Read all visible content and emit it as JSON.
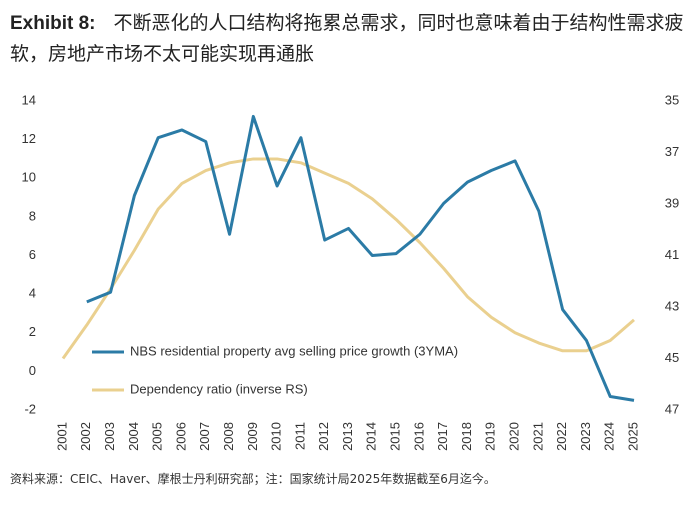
{
  "chart_data": {
    "type": "line",
    "title_label": "Exhibit 8:",
    "title": "不断恶化的人口结构将拖累总需求，同时也意味着由于结构性需求疲软，房地产市场不太可能实现再通胀",
    "source": "资料来源：CEIC、Haver、摩根士丹利研究部；注：国家统计局2025年数据截至6月迄今。",
    "categories": [
      "2001",
      "2002",
      "2003",
      "2004",
      "2005",
      "2006",
      "2007",
      "2008",
      "2009",
      "2010",
      "2011",
      "2012",
      "2013",
      "2014",
      "2015",
      "2016",
      "2017",
      "2018",
      "2019",
      "2020",
      "2021",
      "2022",
      "2023",
      "2024",
      "2025"
    ],
    "series": [
      {
        "name": "NBS residential property avg selling price growth (3YMA)",
        "color": "#2b7ba6",
        "values": [
          null,
          3.6,
          4.1,
          9.1,
          12.1,
          12.5,
          11.9,
          7.1,
          13.2,
          9.6,
          12.1,
          6.8,
          7.4,
          6.0,
          6.1,
          7.1,
          8.7,
          9.8,
          10.4,
          10.9,
          8.3,
          3.2,
          1.6,
          -1.3,
          -1.5
        ]
      },
      {
        "name": "Dependency ratio (inverse RS)",
        "color": "#ead08f",
        "axis": "y2",
        "values": [
          45.0,
          43.7,
          42.3,
          40.8,
          39.2,
          38.2,
          37.7,
          37.4,
          37.25,
          37.25,
          37.4,
          37.8,
          38.2,
          38.8,
          39.6,
          40.5,
          41.5,
          42.6,
          43.4,
          44.0,
          44.4,
          44.7,
          44.7,
          44.3,
          43.5
        ]
      }
    ],
    "ylim": [
      -2,
      14
    ],
    "yticks": [
      -2,
      0,
      2,
      4,
      6,
      8,
      10,
      12,
      14
    ],
    "y2lim": [
      47,
      35
    ],
    "y2ticks": [
      47,
      45,
      43,
      41,
      39,
      37,
      35
    ],
    "grid": false
  }
}
